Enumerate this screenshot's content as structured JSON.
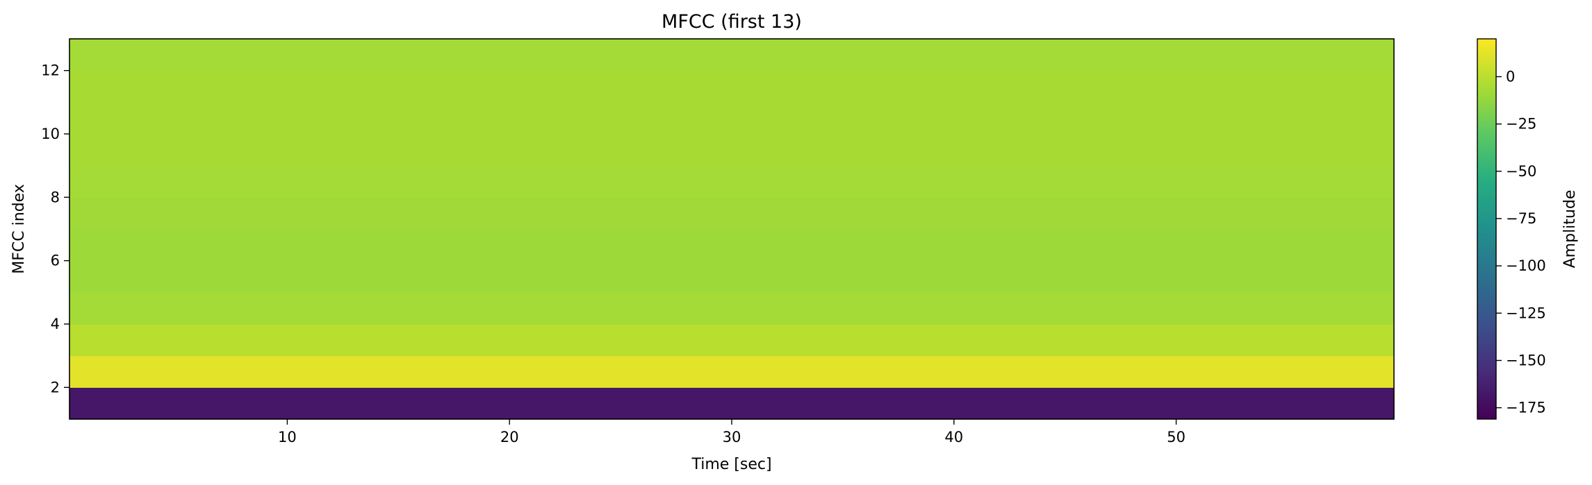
{
  "chart_data": {
    "type": "heatmap",
    "title": "MFCC (first 13)",
    "xlabel": "Time [sec]",
    "ylabel": "MFCC index",
    "colorbar_label": "Amplitude",
    "colormap": "viridis",
    "xlim": [
      0.2,
      59.8
    ],
    "ylim": [
      1,
      13
    ],
    "zlim": [
      -181,
      20
    ],
    "x_ticks": [
      10,
      20,
      30,
      40,
      50
    ],
    "y_ticks": [
      2,
      4,
      6,
      8,
      10,
      12
    ],
    "colorbar_ticks": [
      0,
      -25,
      -50,
      -75,
      -100,
      -125,
      -150,
      -175
    ],
    "colorbar_tick_labels": [
      "0",
      "−25",
      "−50",
      "−75",
      "−100",
      "−125",
      "−150",
      "−175"
    ],
    "grid": false,
    "rows": [
      {
        "index": 1,
        "mean_value": -168
      },
      {
        "index": 2,
        "mean_value": 12
      },
      {
        "index": 3,
        "mean_value": -1
      },
      {
        "index": 4,
        "mean_value": -7
      },
      {
        "index": 5,
        "mean_value": -9
      },
      {
        "index": 6,
        "mean_value": -9
      },
      {
        "index": 7,
        "mean_value": -8
      },
      {
        "index": 8,
        "mean_value": -7
      },
      {
        "index": 9,
        "mean_value": -6
      },
      {
        "index": 10,
        "mean_value": -6
      },
      {
        "index": 11,
        "mean_value": -6
      },
      {
        "index": 12,
        "mean_value": -7
      }
    ]
  }
}
